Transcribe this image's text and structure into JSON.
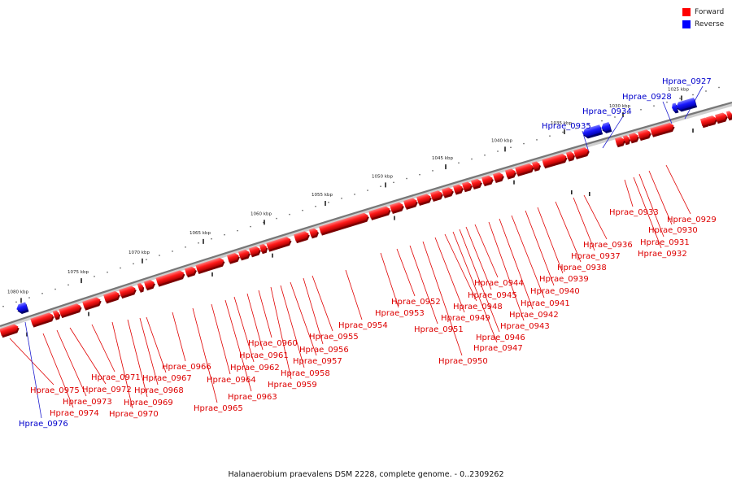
{
  "legend": [
    {
      "label": "Forward",
      "color": "#ff0000"
    },
    {
      "label": "Reverse",
      "color": "#0000ff"
    }
  ],
  "caption": "Halanaerobium praevalens DSM 2228, complete genome. - 0..2309262",
  "scale_labels": [
    "1025 kbp",
    "1030 kbp",
    "1035 kbp",
    "1040 kbp",
    "1045 kbp",
    "1050 kbp",
    "1055 kbp",
    "1060 kbp",
    "1065 kbp",
    "1070 kbp",
    "1075 kbp",
    "1080 kbp"
  ],
  "colors": {
    "forward": "#ff0000",
    "forward_label": "#dd0000",
    "reverse": "#0000ff",
    "reverse_label": "#0000cc",
    "backbone": "#888888"
  },
  "genes": [
    {
      "id": "Hprae_0927",
      "strand": "reverse"
    },
    {
      "id": "Hprae_0928",
      "strand": "reverse"
    },
    {
      "id": "Hprae_0929",
      "strand": "forward"
    },
    {
      "id": "Hprae_0930",
      "strand": "forward"
    },
    {
      "id": "Hprae_0931",
      "strand": "forward"
    },
    {
      "id": "Hprae_0932",
      "strand": "forward"
    },
    {
      "id": "Hprae_0933",
      "strand": "forward"
    },
    {
      "id": "Hprae_0934",
      "strand": "reverse"
    },
    {
      "id": "Hprae_0935",
      "strand": "reverse"
    },
    {
      "id": "Hprae_0936",
      "strand": "forward"
    },
    {
      "id": "Hprae_0937",
      "strand": "forward"
    },
    {
      "id": "Hprae_0938",
      "strand": "forward"
    },
    {
      "id": "Hprae_0939",
      "strand": "forward"
    },
    {
      "id": "Hprae_0940",
      "strand": "forward"
    },
    {
      "id": "Hprae_0941",
      "strand": "forward"
    },
    {
      "id": "Hprae_0942",
      "strand": "forward"
    },
    {
      "id": "Hprae_0943",
      "strand": "forward"
    },
    {
      "id": "Hprae_0944",
      "strand": "forward"
    },
    {
      "id": "Hprae_0945",
      "strand": "forward"
    },
    {
      "id": "Hprae_0946",
      "strand": "forward"
    },
    {
      "id": "Hprae_0947",
      "strand": "forward"
    },
    {
      "id": "Hprae_0948",
      "strand": "forward"
    },
    {
      "id": "Hprae_0949",
      "strand": "forward"
    },
    {
      "id": "Hprae_0950",
      "strand": "forward"
    },
    {
      "id": "Hprae_0951",
      "strand": "forward"
    },
    {
      "id": "Hprae_0952",
      "strand": "forward"
    },
    {
      "id": "Hprae_0953",
      "strand": "forward"
    },
    {
      "id": "Hprae_0954",
      "strand": "forward"
    },
    {
      "id": "Hprae_0955",
      "strand": "forward"
    },
    {
      "id": "Hprae_0956",
      "strand": "forward"
    },
    {
      "id": "Hprae_0957",
      "strand": "forward"
    },
    {
      "id": "Hprae_0958",
      "strand": "forward"
    },
    {
      "id": "Hprae_0959",
      "strand": "forward"
    },
    {
      "id": "Hprae_0960",
      "strand": "forward"
    },
    {
      "id": "Hprae_0961",
      "strand": "forward"
    },
    {
      "id": "Hprae_0962",
      "strand": "forward"
    },
    {
      "id": "Hprae_0963",
      "strand": "forward"
    },
    {
      "id": "Hprae_0964",
      "strand": "forward"
    },
    {
      "id": "Hprae_0965",
      "strand": "forward"
    },
    {
      "id": "Hprae_0966",
      "strand": "forward"
    },
    {
      "id": "Hprae_0967",
      "strand": "forward"
    },
    {
      "id": "Hprae_0968",
      "strand": "forward"
    },
    {
      "id": "Hprae_0969",
      "strand": "forward"
    },
    {
      "id": "Hprae_0970",
      "strand": "forward"
    },
    {
      "id": "Hprae_0971",
      "strand": "forward"
    },
    {
      "id": "Hprae_0972",
      "strand": "forward"
    },
    {
      "id": "Hprae_0973",
      "strand": "forward"
    },
    {
      "id": "Hprae_0974",
      "strand": "forward"
    },
    {
      "id": "Hprae_0975",
      "strand": "forward"
    },
    {
      "id": "Hprae_0976",
      "strand": "reverse"
    }
  ]
}
